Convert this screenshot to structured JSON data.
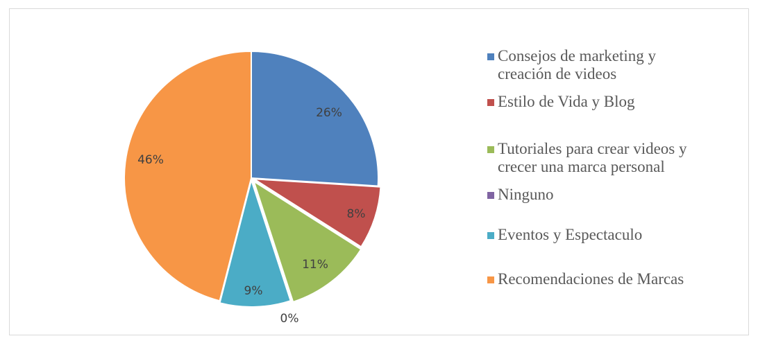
{
  "chart_data": {
    "type": "pie",
    "title": "",
    "legend_position": "right",
    "slices": [
      {
        "label": "Consejos de marketing y creación de videos",
        "value": 26,
        "value_label": "26%",
        "color": "#4f81bd"
      },
      {
        "label": "Estilo de Vida y Blog",
        "value": 8,
        "value_label": "8%",
        "color": "#c0504d"
      },
      {
        "label": "Tutoriales para crear videos y crecer una marca personal",
        "value": 11,
        "value_label": "11%",
        "color": "#9bbb59"
      },
      {
        "label": "Ninguno",
        "value": 0,
        "value_label": "0%",
        "color": "#8064a2"
      },
      {
        "label": "Eventos y Espectaculo",
        "value": 9,
        "value_label": "9%",
        "color": "#4bacc6"
      },
      {
        "label": "Recomendaciones de Marcas",
        "value": 46,
        "value_label": "46%",
        "color": "#f79646"
      }
    ]
  }
}
